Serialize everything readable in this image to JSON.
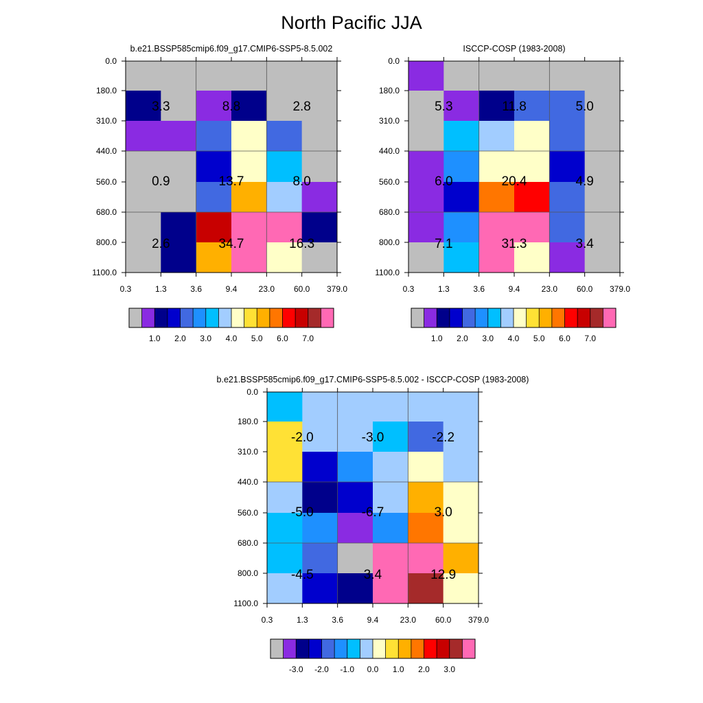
{
  "title": "North Pacific JJA",
  "palette": [
    "#BEBEBE",
    "#8A2BE2",
    "#00008B",
    "#0000CD",
    "#4169E1",
    "#1E90FF",
    "#00BFFF",
    "#A2CDFF",
    "#FFFFC8",
    "#FFE135",
    "#FFB000",
    "#FF7600",
    "#FF0000",
    "#C80000",
    "#A52A2A",
    "#FF69B4"
  ],
  "x_ticks": [
    "0.3",
    "1.3",
    "3.6",
    "9.4",
    "23.0",
    "60.0",
    "379.0"
  ],
  "y_ticks": [
    "0.0",
    "180.0",
    "310.0",
    "440.0",
    "560.0",
    "680.0",
    "800.0",
    "1100.0"
  ],
  "colorbars": [
    {
      "name": "model-colorbar",
      "labels": [
        "1.0",
        "2.0",
        "3.0",
        "4.0",
        "5.0",
        "6.0",
        "7.0"
      ]
    },
    {
      "name": "obs-colorbar",
      "labels": [
        "1.0",
        "2.0",
        "3.0",
        "4.0",
        "5.0",
        "6.0",
        "7.0"
      ]
    },
    {
      "name": "diff-colorbar",
      "labels": [
        "-3.0",
        "-2.0",
        "-1.0",
        "0.0",
        "1.0",
        "2.0",
        "3.0"
      ]
    }
  ],
  "chart_data": [
    {
      "type": "heatmap",
      "title": "b.e21.BSSP585cmip6.f09_g17.CMIP6-SSP5-8.5.002",
      "xlabel": "",
      "ylabel": "",
      "x_ticks": [
        "0.3",
        "1.3",
        "3.6",
        "9.4",
        "23.0",
        "60.0",
        "379.0"
      ],
      "y_ticks": [
        "0.0",
        "180.0",
        "310.0",
        "440.0",
        "560.0",
        "680.0",
        "800.0",
        "1100.0"
      ],
      "cell_color_index": [
        [
          0,
          0,
          0,
          0,
          0,
          0
        ],
        [
          2,
          0,
          1,
          2,
          0,
          0
        ],
        [
          1,
          1,
          4,
          8,
          4,
          0
        ],
        [
          0,
          0,
          3,
          8,
          6,
          0
        ],
        [
          0,
          0,
          4,
          10,
          7,
          1
        ],
        [
          0,
          2,
          13,
          15,
          15,
          2
        ],
        [
          0,
          2,
          10,
          15,
          8,
          0
        ]
      ],
      "block_values": [
        [
          "3.3",
          "8.8",
          "2.8"
        ],
        [
          "0.9",
          "13.7",
          "8.0"
        ],
        [
          "2.6",
          "34.7",
          "16.3"
        ]
      ]
    },
    {
      "type": "heatmap",
      "title": "ISCCP-COSP (1983-2008)",
      "xlabel": "",
      "ylabel": "",
      "x_ticks": [
        "0.3",
        "1.3",
        "3.6",
        "9.4",
        "23.0",
        "60.0",
        "379.0"
      ],
      "y_ticks": [
        "0.0",
        "180.0",
        "310.0",
        "440.0",
        "560.0",
        "680.0",
        "800.0",
        "1100.0"
      ],
      "cell_color_index": [
        [
          1,
          0,
          0,
          0,
          0,
          0
        ],
        [
          0,
          1,
          2,
          4,
          4,
          0
        ],
        [
          0,
          6,
          7,
          8,
          4,
          0
        ],
        [
          1,
          5,
          8,
          8,
          3,
          0
        ],
        [
          1,
          3,
          11,
          12,
          4,
          0
        ],
        [
          1,
          5,
          15,
          15,
          4,
          0
        ],
        [
          0,
          6,
          15,
          8,
          1,
          0
        ]
      ],
      "block_values": [
        [
          "5.3",
          "11.8",
          "5.0"
        ],
        [
          "6.0",
          "20.4",
          "4.9"
        ],
        [
          "7.1",
          "31.3",
          "3.4"
        ]
      ]
    },
    {
      "type": "heatmap",
      "title": "b.e21.BSSP585cmip6.f09_g17.CMIP6-SSP5-8.5.002 - ISCCP-COSP (1983-2008)",
      "xlabel": "",
      "ylabel": "",
      "x_ticks": [
        "0.3",
        "1.3",
        "3.6",
        "9.4",
        "23.0",
        "60.0",
        "379.0"
      ],
      "y_ticks": [
        "0.0",
        "180.0",
        "310.0",
        "440.0",
        "560.0",
        "680.0",
        "800.0",
        "1100.0"
      ],
      "cell_color_index": [
        [
          6,
          7,
          7,
          7,
          7,
          7
        ],
        [
          9,
          7,
          7,
          6,
          4,
          7
        ],
        [
          9,
          3,
          5,
          7,
          8,
          7
        ],
        [
          7,
          2,
          3,
          7,
          10,
          8
        ],
        [
          6,
          5,
          1,
          5,
          11,
          8
        ],
        [
          6,
          4,
          0,
          15,
          15,
          10
        ],
        [
          7,
          3,
          2,
          15,
          14,
          8
        ]
      ],
      "block_values": [
        [
          "-2.0",
          "-3.0",
          "-2.2"
        ],
        [
          "-5.0",
          "-6.7",
          "3.0"
        ],
        [
          "-4.5",
          "3.4",
          "12.9"
        ]
      ]
    }
  ]
}
